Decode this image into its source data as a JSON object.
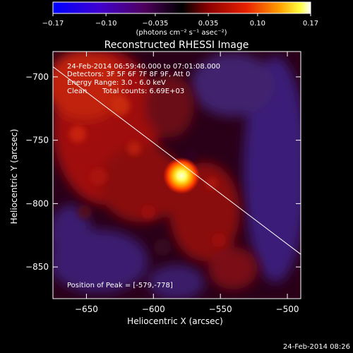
{
  "chart_data": {
    "type": "heatmap",
    "title": "Reconstructed RHESSI Image",
    "xlabel": "Heliocentric X (arcsec)",
    "ylabel": "Heliocentric Y (arcsec)",
    "xlim": [
      -675,
      -490
    ],
    "ylim": [
      -875,
      -680
    ],
    "xticks": [
      -650,
      -600,
      -550,
      -500
    ],
    "yticks": [
      -700,
      -750,
      -800,
      -850
    ],
    "colorbar": {
      "label": "(photons cm⁻² s⁻¹ asec⁻²)",
      "range": [
        -0.17,
        0.17
      ],
      "ticks": [
        -0.17,
        -0.1,
        -0.035,
        0.035,
        0.1,
        0.17
      ],
      "tick_labels": [
        "-0.17",
        "-0.10",
        "-0.035",
        "0.035",
        "0.10",
        "0.17"
      ]
    },
    "annotations": {
      "time": "24-Feb-2014 06:59:40.000 to 07:01:08.000",
      "detectors": "Detectors: 3F 5F 6F 7F 8F 9F, Att 0",
      "energy": "Energy Range: 3.0 - 6.0 keV",
      "method": "Clean",
      "counts": "Total counts: 6.69E+03",
      "peak_label": "Position of Peak = [-579,-778]"
    },
    "peak": {
      "x": -579,
      "y": -778,
      "value": 0.17
    },
    "limb_line": [
      [
        -675,
        -692
      ],
      [
        -490,
        -840
      ]
    ],
    "footer_date": "24-Feb-2014 08:26"
  },
  "colors": {
    "background": "#000000",
    "colormap": [
      "#0000ff",
      "#8000c0",
      "#000000",
      "#c00000",
      "#ff8000",
      "#ffff00",
      "#ffffff"
    ]
  }
}
